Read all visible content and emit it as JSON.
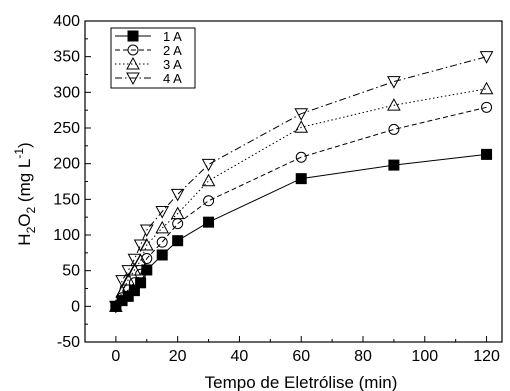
{
  "chart_data": {
    "type": "line",
    "xlabel": "Tempo de Eletrólise (min)",
    "ylabel_parts": {
      "h": "H",
      "sub1": "2",
      "o": "O",
      "sub2": "2",
      "unit": " (mg L",
      "sup": "-1",
      "close": ")"
    },
    "xlim": [
      -10,
      125
    ],
    "ylim": [
      -50,
      400
    ],
    "xticks": [
      0,
      20,
      40,
      60,
      80,
      100,
      120
    ],
    "yticks": [
      -50,
      0,
      50,
      100,
      150,
      200,
      250,
      300,
      350,
      400
    ],
    "grid": false,
    "legend_position": "top-left",
    "series": [
      {
        "name": "1 A",
        "marker": "square-filled",
        "line": "solid",
        "x": [
          0,
          2,
          4,
          6,
          8,
          10,
          15,
          20,
          30,
          60,
          90,
          120
        ],
        "y": [
          0,
          8,
          14,
          22,
          33,
          51,
          72,
          92,
          118,
          179,
          198,
          213
        ]
      },
      {
        "name": "2 A",
        "marker": "circle-open",
        "line": "dashed",
        "x": [
          0,
          2,
          4,
          6,
          8,
          10,
          15,
          20,
          30,
          60,
          90,
          120
        ],
        "y": [
          0,
          12,
          23,
          33,
          45,
          67,
          90,
          116,
          148,
          209,
          248,
          279
        ]
      },
      {
        "name": "3 A",
        "marker": "triangle-up-open",
        "line": "dotted",
        "x": [
          0,
          2,
          4,
          6,
          8,
          10,
          15,
          20,
          30,
          60,
          90,
          120
        ],
        "y": [
          0,
          20,
          37,
          51,
          64,
          86,
          110,
          130,
          176,
          251,
          282,
          305
        ]
      },
      {
        "name": "4 A",
        "marker": "triangle-down-open",
        "line": "dashdot",
        "x": [
          0,
          2,
          4,
          6,
          8,
          10,
          15,
          20,
          30,
          60,
          90,
          120
        ],
        "y": [
          0,
          36,
          50,
          66,
          86,
          107,
          133,
          157,
          199,
          270,
          315,
          350
        ]
      }
    ]
  }
}
